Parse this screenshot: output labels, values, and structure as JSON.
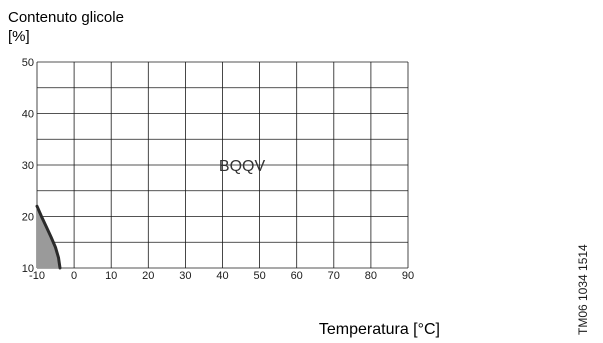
{
  "chart_data": {
    "type": "area",
    "title": "",
    "ylabel_line1": "Contenuto glicole",
    "ylabel_line2": "[%]",
    "xlabel": "Temperatura [°C]",
    "x_ticks": [
      -10,
      0,
      10,
      20,
      30,
      40,
      50,
      60,
      70,
      80,
      90
    ],
    "y_ticks": [
      10,
      20,
      30,
      40,
      50
    ],
    "xlim": [
      -10,
      90
    ],
    "ylim": [
      10,
      50
    ],
    "grid": true,
    "annotation": "BQQV",
    "series": [
      {
        "x": [
          -10,
          -8.8,
          -7.5,
          -6.2,
          -5,
          -4.2,
          -3.8
        ],
        "y": [
          22,
          20,
          18,
          16,
          14,
          12,
          10
        ],
        "fill": "#9a9a9a",
        "stroke": "#2b2b2b"
      }
    ]
  },
  "side_code": "TM06 1034 1514"
}
